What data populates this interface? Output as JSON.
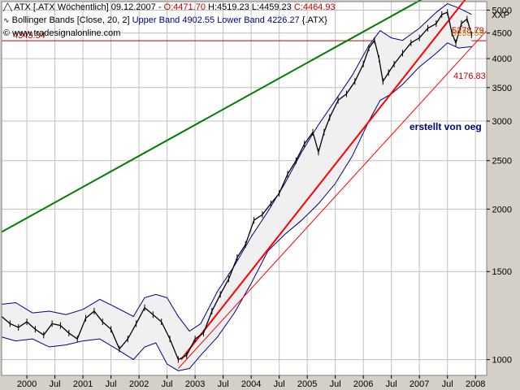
{
  "header": {
    "line1": {
      "symbol": "ATX [.ATX",
      "period": "Wöchentlich] 09.12.2007 -",
      "open": "O:4471.70",
      "high": "H:4519.23",
      "low": "L:4459.23",
      "close": "C:4464.93"
    },
    "line2": {
      "indicator": "Bollinger Bands [Close, 20, 2]",
      "upper": "Upper Band 4902.55",
      "lower": "Lower Band 4226.27",
      "symbol": "{.ATX}"
    },
    "line3": {
      "copyright_icon": "copyright-icon",
      "url": "www.tradesignalonline.com"
    }
  },
  "price_line": {
    "label": "4343.34",
    "value": 4343.34
  },
  "annotations": {
    "upper_band_value": "5278.79",
    "channel_value": "5233.55",
    "lower_value": "4176.83",
    "watermark": "erstellt von oeg"
  },
  "colors": {
    "frame_bg": "#d4d0c8",
    "plot_bg": "#ffffff",
    "grid": "#c0c0c0",
    "price": "#000000",
    "band": "#000080",
    "band_fill": "#f0f0f0",
    "trend_green": "#008000",
    "trend_red": "#ff0000",
    "horizontal": "#c00000"
  },
  "chart_data": {
    "type": "line",
    "scale": "log",
    "y_axis_label": "XXP",
    "ylim": [
      930,
      5200
    ],
    "y_ticks": [
      "5000",
      "4500",
      "4000",
      "3500",
      "3000",
      "2500",
      "2000",
      "1500",
      "1000"
    ],
    "y_tick_values": [
      5000,
      4500,
      4000,
      3500,
      3000,
      2500,
      2000,
      1500,
      1000
    ],
    "x_ticks": [
      "2000",
      "Jul",
      "2001",
      "Jul",
      "2002",
      "Jul",
      "2003",
      "Jul",
      "2004",
      "Jul",
      "2005",
      "Jul",
      "2006",
      "Jul",
      "2007",
      "Jul",
      "2008"
    ],
    "x_tick_values": [
      2000.0,
      2000.5,
      2001.0,
      2001.5,
      2002.0,
      2002.5,
      2003.0,
      2003.5,
      2004.0,
      2004.5,
      2005.0,
      2005.5,
      2006.0,
      2006.5,
      2007.0,
      2007.5,
      2008.0
    ],
    "xlim": [
      1999.55,
      2008.2
    ],
    "series": [
      {
        "name": "ATX",
        "x": [
          1999.55,
          1999.7,
          1999.85,
          2000.0,
          2000.15,
          2000.3,
          2000.45,
          2000.6,
          2000.75,
          2000.9,
          2001.05,
          2001.2,
          2001.35,
          2001.5,
          2001.65,
          2001.8,
          2001.95,
          2002.1,
          2002.25,
          2002.4,
          2002.55,
          2002.7,
          2002.85,
          2003.0,
          2003.15,
          2003.3,
          2003.45,
          2003.6,
          2003.75,
          2003.9,
          2004.05,
          2004.2,
          2004.35,
          2004.5,
          2004.65,
          2004.8,
          2004.95,
          2005.1,
          2005.2,
          2005.3,
          2005.4,
          2005.55,
          2005.7,
          2005.85,
          2006.0,
          2006.1,
          2006.2,
          2006.28,
          2006.35,
          2006.45,
          2006.55,
          2006.7,
          2006.85,
          2007.0,
          2007.15,
          2007.3,
          2007.4,
          2007.5,
          2007.58,
          2007.65,
          2007.75,
          2007.85,
          2007.93
        ],
        "y": [
          1220,
          1180,
          1160,
          1190,
          1150,
          1120,
          1180,
          1170,
          1130,
          1100,
          1210,
          1250,
          1190,
          1150,
          1050,
          1100,
          1180,
          1270,
          1230,
          1190,
          1100,
          1000,
          1020,
          1100,
          1130,
          1250,
          1350,
          1450,
          1600,
          1700,
          1900,
          1950,
          2050,
          2150,
          2350,
          2500,
          2700,
          2850,
          2600,
          2850,
          3050,
          3300,
          3400,
          3600,
          3900,
          4200,
          4350,
          4000,
          3600,
          3750,
          3900,
          4100,
          4300,
          4400,
          4600,
          4700,
          4900,
          4950,
          4500,
          4300,
          4700,
          4800,
          4465
        ]
      },
      {
        "name": "Upper Band",
        "x": [
          1999.55,
          1999.8,
          2000.1,
          2000.4,
          2000.7,
          2001.0,
          2001.3,
          2001.6,
          2001.9,
          2002.1,
          2002.3,
          2002.5,
          2002.7,
          2002.9,
          2003.1,
          2003.4,
          2003.7,
          2004.0,
          2004.3,
          2004.6,
          2004.9,
          2005.2,
          2005.5,
          2005.8,
          2006.1,
          2006.3,
          2006.5,
          2006.7,
          2007.0,
          2007.3,
          2007.5,
          2007.7,
          2007.93
        ],
        "y": [
          1290,
          1300,
          1240,
          1250,
          1230,
          1260,
          1320,
          1270,
          1220,
          1330,
          1350,
          1330,
          1220,
          1140,
          1180,
          1370,
          1540,
          1760,
          1980,
          2250,
          2600,
          2950,
          3300,
          3700,
          4250,
          4550,
          4400,
          4350,
          4600,
          4950,
          5150,
          5050,
          4903
        ]
      },
      {
        "name": "Lower Band",
        "x": [
          1999.55,
          1999.8,
          2000.1,
          2000.4,
          2000.7,
          2001.0,
          2001.3,
          2001.6,
          2001.9,
          2002.1,
          2002.3,
          2002.5,
          2002.7,
          2002.9,
          2003.1,
          2003.4,
          2003.7,
          2004.0,
          2004.3,
          2004.6,
          2004.9,
          2005.2,
          2005.5,
          2005.8,
          2006.1,
          2006.3,
          2006.5,
          2006.7,
          2007.0,
          2007.3,
          2007.5,
          2007.7,
          2007.93
        ],
        "y": [
          1110,
          1090,
          1100,
          1060,
          1070,
          1090,
          1100,
          1050,
          1000,
          1060,
          1080,
          980,
          950,
          960,
          1020,
          1110,
          1240,
          1420,
          1650,
          1780,
          1900,
          2050,
          2250,
          2550,
          3000,
          3300,
          3400,
          3550,
          3850,
          4100,
          4300,
          4200,
          4226
        ]
      }
    ],
    "trendlines": [
      {
        "name": "green",
        "x": [
          1999.55,
          2008.2
        ],
        "y": [
          1800,
          6200
        ]
      },
      {
        "name": "red-thick",
        "x": [
          2002.75,
          2008.2
        ],
        "y": [
          1000,
          5950
        ]
      },
      {
        "name": "red-thin",
        "x": [
          2002.7,
          2008.2
        ],
        "y": [
          960,
          4550
        ]
      }
    ]
  }
}
